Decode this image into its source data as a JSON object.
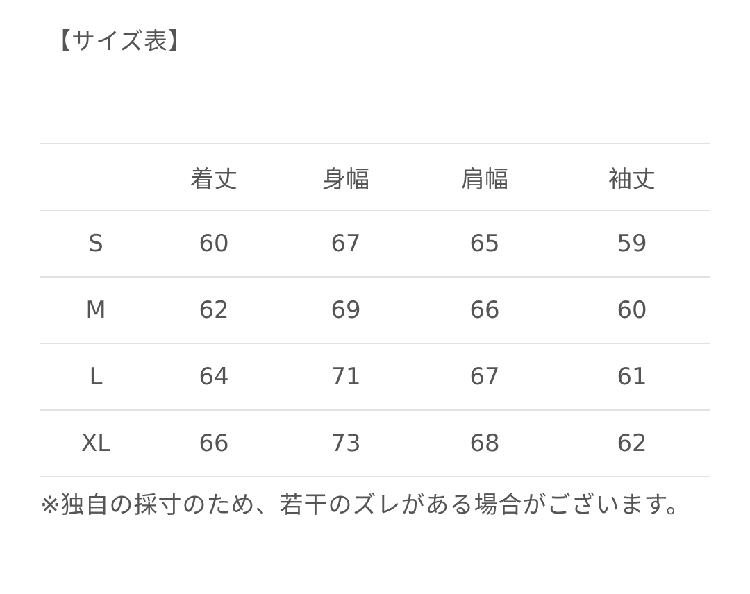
{
  "title": "【サイズ表】",
  "table": {
    "headers": [
      "",
      "着丈",
      "身幅",
      "肩幅",
      "袖丈"
    ],
    "rows": [
      [
        "S",
        "60",
        "67",
        "65",
        "59"
      ],
      [
        "M",
        "62",
        "69",
        "66",
        "60"
      ],
      [
        "L",
        "64",
        "71",
        "67",
        "61"
      ],
      [
        "XL",
        "66",
        "73",
        "68",
        "62"
      ]
    ]
  },
  "note": "※独自の採寸のため、若干のズレがある場合がございます。"
}
